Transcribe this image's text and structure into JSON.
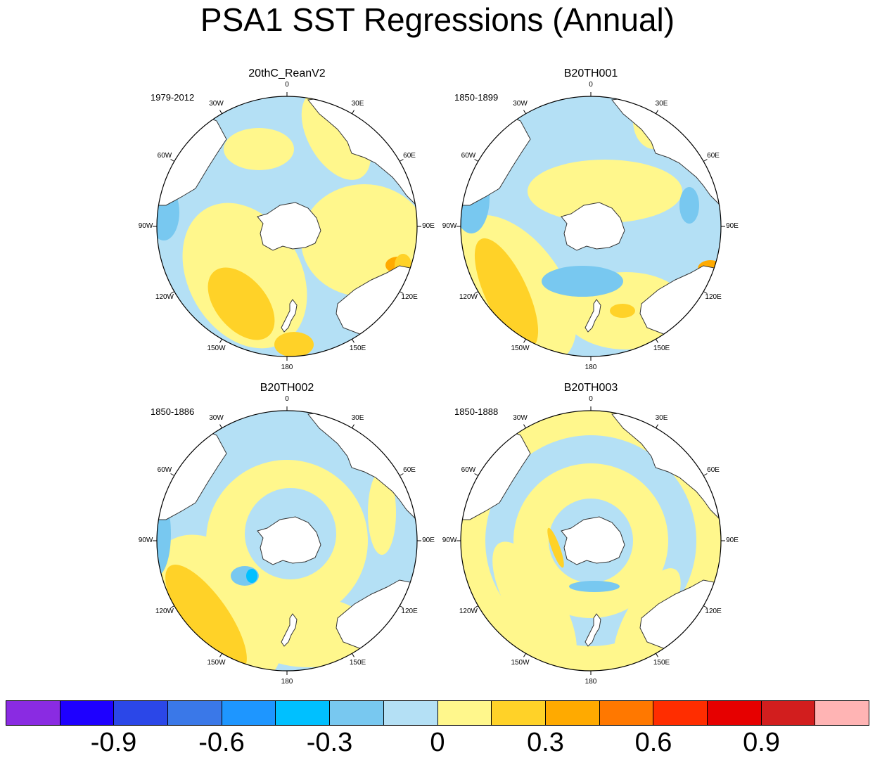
{
  "figure": {
    "title": "PSA1 SST Regressions (Annual)"
  },
  "panels": [
    {
      "name": "20thC_ReanV2",
      "period": "1979-2012",
      "pattern": "obs"
    },
    {
      "name": "B20TH001",
      "period": "1850-1899",
      "pattern": "m1"
    },
    {
      "name": "B20TH002",
      "period": "1850-1886",
      "pattern": "m2"
    },
    {
      "name": "B20TH003",
      "period": "1850-1888",
      "pattern": "m3"
    }
  ],
  "longitude_labels": [
    "0",
    "30E",
    "60E",
    "90E",
    "120E",
    "150E",
    "180",
    "150W",
    "120W",
    "90W",
    "60W",
    "30W"
  ],
  "colorbar": {
    "colors": [
      "#8a2be2",
      "#1e00ff",
      "#2b47e8",
      "#3a78e8",
      "#1e96ff",
      "#00c0ff",
      "#78c8f0",
      "#b4e0f5",
      "#fff78c",
      "#ffd228",
      "#ffaa00",
      "#ff7800",
      "#ff2d00",
      "#e60000",
      "#d21e1e",
      "#ffb4b4"
    ],
    "labels": [
      "-0.9",
      "-0.6",
      "-0.3",
      "0",
      "0.3",
      "0.6",
      "0.9"
    ]
  },
  "chart_data": {
    "type": "heatmap",
    "title": "PSA1 SST Regressions (Annual)",
    "projection": "south-polar-stereographic",
    "levels": [
      -1.05,
      -0.9,
      -0.75,
      -0.6,
      -0.45,
      -0.3,
      -0.15,
      0,
      0.15,
      0.3,
      0.45,
      0.6,
      0.75,
      0.9,
      1.05
    ],
    "panels": [
      "20thC_ReanV2",
      "B20TH001",
      "B20TH002",
      "B20TH003"
    ]
  }
}
